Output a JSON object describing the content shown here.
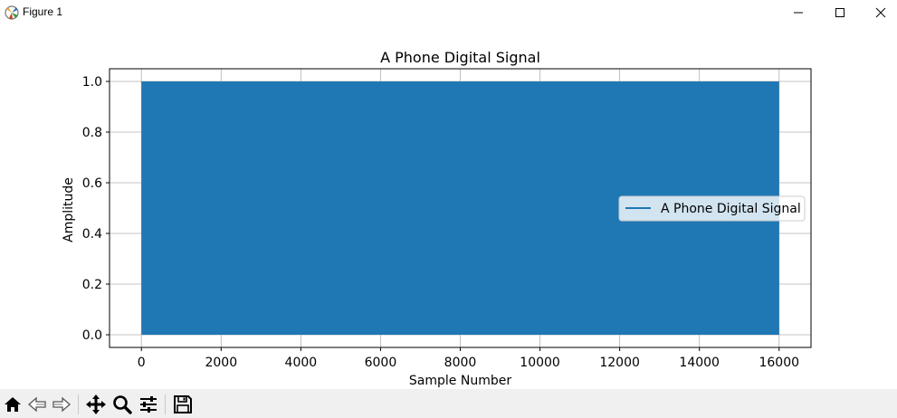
{
  "window": {
    "title": "Figure 1"
  },
  "chart_data": {
    "type": "area",
    "title": "A Phone Digital Signal",
    "xlabel": "Sample Number",
    "ylabel": "Amplitude",
    "xlim": [
      -800,
      16800
    ],
    "ylim": [
      -0.05,
      1.05
    ],
    "xticks": [
      0,
      2000,
      4000,
      6000,
      8000,
      10000,
      12000,
      14000,
      16000
    ],
    "xtick_labels": [
      "0",
      "2000",
      "4000",
      "6000",
      "8000",
      "10000",
      "12000",
      "14000",
      "16000"
    ],
    "yticks": [
      0.0,
      0.2,
      0.4,
      0.6,
      0.8,
      1.0
    ],
    "ytick_labels": [
      "0.0",
      "0.2",
      "0.4",
      "0.6",
      "0.8",
      "1.0"
    ],
    "grid": true,
    "legend_position": "center-right",
    "series": [
      {
        "name": "A Phone Digital Signal",
        "color": "#1f77b4",
        "x_range": [
          0,
          16000
        ],
        "min": 0.0,
        "max": 1.0,
        "note": "dense oscillation filling 0–1 across all samples"
      }
    ]
  },
  "toolbar": {
    "items": [
      "home-icon",
      "back-icon",
      "forward-icon",
      "pan-icon",
      "zoom-icon",
      "configure-icon",
      "save-icon"
    ]
  }
}
